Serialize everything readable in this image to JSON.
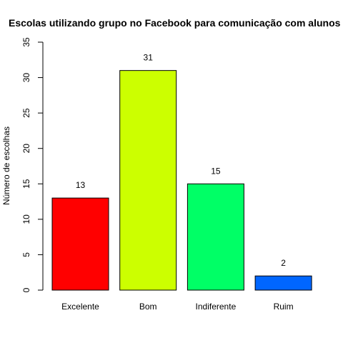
{
  "chart_data": {
    "type": "bar",
    "title": "Escolas utilizando grupo no Facebook para comunicação com alunos",
    "xlabel": "",
    "ylabel": "Número de escolhas",
    "categories": [
      "Excelente",
      "Bom",
      "Indiferente",
      "Ruim"
    ],
    "values": [
      13,
      31,
      15,
      2
    ],
    "data_labels": [
      "13",
      "31",
      "15",
      "2"
    ],
    "colors": [
      "#ff0000",
      "#ccff00",
      "#00ff66",
      "#0066ff"
    ],
    "ylim": [
      0,
      35
    ],
    "yticks": [
      0,
      5,
      10,
      15,
      20,
      25,
      30,
      35
    ],
    "grid": false,
    "legend": "none"
  }
}
